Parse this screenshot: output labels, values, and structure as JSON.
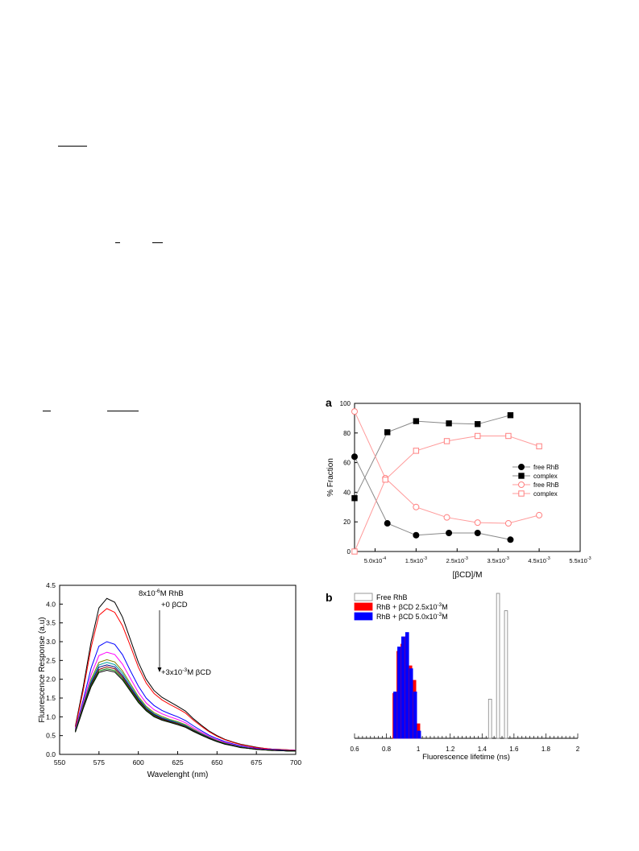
{
  "colors": {
    "black": "#000000",
    "red": "#ff0000",
    "pink": "#ff8c8c",
    "blue": "#0000ff",
    "gray": "#888888",
    "white": "#ffffff"
  },
  "panels": {
    "a": "a",
    "b": "b"
  },
  "chart_data": [
    {
      "type": "line",
      "title": "",
      "xlabel": "Wavelenght (nm)",
      "ylabel": "Fluorescence Response (a.u)",
      "xlim": [
        550,
        700
      ],
      "ylim": [
        0.0,
        4.5
      ],
      "x_ticks": [
        "550",
        "575",
        "600",
        "625",
        "650",
        "675",
        "700"
      ],
      "y_ticks": [
        "0.0",
        "0.5",
        "1.0",
        "1.5",
        "2.0",
        "2.5",
        "3.0",
        "3.5",
        "4.0",
        "4.5"
      ],
      "annotations": [
        "8x10",
        "-6",
        "M RhB",
        "+0 βCD",
        "+3x10",
        "-3",
        "M βCD"
      ],
      "x": [
        560,
        565,
        570,
        575,
        580,
        585,
        590,
        595,
        600,
        605,
        610,
        615,
        620,
        625,
        630,
        635,
        640,
        645,
        650,
        655,
        660,
        665,
        670,
        675,
        680,
        685,
        690,
        695,
        700
      ],
      "series": [
        {
          "color": "#000000",
          "values": [
            0.75,
            1.8,
            3.0,
            3.9,
            4.15,
            4.05,
            3.65,
            3.05,
            2.45,
            2.0,
            1.7,
            1.52,
            1.4,
            1.28,
            1.15,
            0.95,
            0.78,
            0.62,
            0.5,
            0.4,
            0.33,
            0.27,
            0.23,
            0.19,
            0.16,
            0.14,
            0.13,
            0.12,
            0.11
          ]
        },
        {
          "color": "#ff0000",
          "values": [
            0.72,
            1.7,
            2.85,
            3.7,
            3.88,
            3.78,
            3.42,
            2.88,
            2.32,
            1.9,
            1.62,
            1.45,
            1.33,
            1.22,
            1.1,
            0.91,
            0.75,
            0.6,
            0.48,
            0.39,
            0.32,
            0.26,
            0.22,
            0.18,
            0.16,
            0.14,
            0.13,
            0.12,
            0.11
          ]
        },
        {
          "color": "#0000ff",
          "values": [
            0.68,
            1.45,
            2.3,
            2.88,
            3.0,
            2.93,
            2.65,
            2.22,
            1.82,
            1.5,
            1.3,
            1.17,
            1.08,
            1.0,
            0.9,
            0.76,
            0.63,
            0.51,
            0.42,
            0.34,
            0.28,
            0.23,
            0.19,
            0.16,
            0.14,
            0.13,
            0.12,
            0.11,
            0.1
          ]
        },
        {
          "color": "#ff00ff",
          "values": [
            0.66,
            1.38,
            2.12,
            2.63,
            2.72,
            2.66,
            2.4,
            2.02,
            1.65,
            1.37,
            1.19,
            1.08,
            1.0,
            0.93,
            0.84,
            0.71,
            0.59,
            0.48,
            0.39,
            0.32,
            0.26,
            0.21,
            0.18,
            0.15,
            0.13,
            0.12,
            0.11,
            0.1,
            0.1
          ]
        },
        {
          "color": "#808000",
          "values": [
            0.64,
            1.33,
            2.0,
            2.45,
            2.52,
            2.46,
            2.22,
            1.88,
            1.54,
            1.28,
            1.11,
            1.01,
            0.93,
            0.87,
            0.79,
            0.67,
            0.56,
            0.46,
            0.37,
            0.3,
            0.25,
            0.2,
            0.17,
            0.14,
            0.12,
            0.11,
            0.1,
            0.1,
            0.09
          ]
        },
        {
          "color": "#00a0a0",
          "values": [
            0.63,
            1.3,
            1.95,
            2.38,
            2.45,
            2.39,
            2.16,
            1.83,
            1.5,
            1.25,
            1.08,
            0.98,
            0.91,
            0.85,
            0.77,
            0.65,
            0.55,
            0.45,
            0.36,
            0.29,
            0.24,
            0.2,
            0.17,
            0.14,
            0.12,
            0.11,
            0.1,
            0.09,
            0.09
          ]
        },
        {
          "color": "#000080",
          "values": [
            0.62,
            1.28,
            1.9,
            2.32,
            2.38,
            2.33,
            2.1,
            1.78,
            1.47,
            1.22,
            1.06,
            0.96,
            0.89,
            0.83,
            0.75,
            0.64,
            0.54,
            0.44,
            0.35,
            0.29,
            0.24,
            0.19,
            0.16,
            0.14,
            0.12,
            0.11,
            0.1,
            0.09,
            0.09
          ]
        },
        {
          "color": "#800000",
          "values": [
            0.61,
            1.26,
            1.86,
            2.26,
            2.33,
            2.28,
            2.06,
            1.74,
            1.44,
            1.2,
            1.04,
            0.94,
            0.87,
            0.82,
            0.74,
            0.63,
            0.53,
            0.43,
            0.35,
            0.28,
            0.23,
            0.19,
            0.16,
            0.14,
            0.12,
            0.11,
            0.1,
            0.09,
            0.09
          ]
        },
        {
          "color": "#008000",
          "values": [
            0.6,
            1.24,
            1.83,
            2.22,
            2.28,
            2.23,
            2.02,
            1.71,
            1.41,
            1.18,
            1.02,
            0.92,
            0.86,
            0.8,
            0.73,
            0.62,
            0.52,
            0.42,
            0.34,
            0.28,
            0.23,
            0.19,
            0.16,
            0.13,
            0.12,
            0.11,
            0.1,
            0.09,
            0.09
          ]
        },
        {
          "color": "#000000",
          "values": [
            0.59,
            1.22,
            1.8,
            2.18,
            2.24,
            2.19,
            1.98,
            1.68,
            1.38,
            1.16,
            1.0,
            0.91,
            0.85,
            0.79,
            0.72,
            0.61,
            0.51,
            0.42,
            0.34,
            0.27,
            0.23,
            0.18,
            0.16,
            0.13,
            0.12,
            0.1,
            0.1,
            0.09,
            0.09
          ]
        }
      ]
    },
    {
      "type": "line",
      "title": "",
      "xlabel": "[βCD]/M",
      "ylabel": "% Fraction",
      "xlim": [
        0,
        0.0055
      ],
      "ylim": [
        0,
        100
      ],
      "x_ticks": [
        {
          "value": 0.0005,
          "base": "5.0x10",
          "exp": "-4"
        },
        {
          "value": 0.0015,
          "base": "1.5x10",
          "exp": "-3"
        },
        {
          "value": 0.0025,
          "base": "2.5x10",
          "exp": "-3"
        },
        {
          "value": 0.0035,
          "base": "3.5x10",
          "exp": "-3"
        },
        {
          "value": 0.0045,
          "base": "4.5x10",
          "exp": "-3"
        },
        {
          "value": 0.0055,
          "base": "5.5x10",
          "exp": "-3"
        }
      ],
      "y_ticks": [
        "0",
        "20",
        "40",
        "60",
        "80",
        "100"
      ],
      "legend": "center-right",
      "series": [
        {
          "name": "free RhB",
          "marker": "circle",
          "filled": true,
          "color": "#000000",
          "line_color": "#888888",
          "x": [
            0,
            0.0008,
            0.0015,
            0.0023,
            0.003,
            0.0038
          ],
          "y": [
            64,
            19,
            11,
            12.5,
            12.5,
            8
          ]
        },
        {
          "name": "complex",
          "marker": "square",
          "filled": true,
          "color": "#000000",
          "line_color": "#888888",
          "x": [
            0,
            0.0008,
            0.0015,
            0.0023,
            0.003,
            0.0038
          ],
          "y": [
            36,
            80.5,
            88,
            86.5,
            86,
            92
          ]
        },
        {
          "name": "free RhB",
          "marker": "circle",
          "filled": false,
          "color": "#ff8080",
          "line_color": "#ff9a9a",
          "x": [
            0,
            0.00075,
            0.0015,
            0.00225,
            0.003,
            0.00375,
            0.0045
          ],
          "y": [
            94.5,
            49.5,
            30,
            23,
            19.5,
            19,
            24.5
          ]
        },
        {
          "name": "complex",
          "marker": "square",
          "filled": false,
          "color": "#ff8080",
          "line_color": "#ff9a9a",
          "x": [
            0,
            0.00075,
            0.0015,
            0.00225,
            0.003,
            0.00375,
            0.0045
          ],
          "y": [
            0,
            48.5,
            68,
            74.5,
            78,
            78,
            71
          ]
        }
      ]
    },
    {
      "type": "bar",
      "title": "",
      "xlabel": "Fluorescence lifetime (ns)",
      "ylabel": "",
      "xlim": [
        0.6,
        2.0
      ],
      "ylim": [
        0,
        1
      ],
      "x_ticks": [
        "0.6",
        "0.8",
        "1",
        "1.2",
        "1.4",
        "1.6",
        "1.8",
        "2"
      ],
      "legend": "top-left",
      "series": [
        {
          "name": "Free RhB",
          "color": "#ffffff",
          "stroke": "#808080",
          "x": [
            1.45,
            1.5,
            1.55
          ],
          "values": [
            0.27,
            1.0,
            0.88
          ]
        },
        {
          "name": "RhB + βCD 2.5x10",
          "name_exp": "-3",
          "name_tail": "M",
          "color": "#ff0000",
          "stroke": "#ff0000",
          "x": [
            0.85,
            0.875,
            0.9,
            0.925,
            0.95,
            0.975,
            1.0
          ],
          "values": [
            0.31,
            0.6,
            0.65,
            0.7,
            0.5,
            0.4,
            0.1
          ]
        },
        {
          "name": "RhB + βCD 5.0x10",
          "name_exp": "-3",
          "name_tail": "M",
          "color": "#0000ff",
          "stroke": "#0000ff",
          "x": [
            0.855,
            0.88,
            0.905,
            0.93,
            0.955,
            0.98,
            1.005
          ],
          "values": [
            0.32,
            0.63,
            0.7,
            0.73,
            0.48,
            0.32,
            0.05
          ]
        }
      ]
    }
  ]
}
